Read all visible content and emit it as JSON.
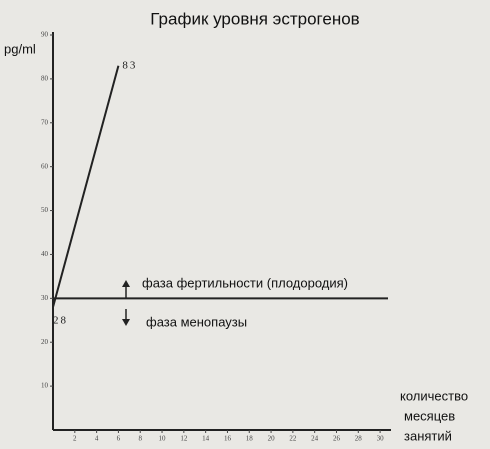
{
  "chart_data": {
    "type": "line",
    "title": "График уровня эстрогенов",
    "y_label": "pg/ml",
    "x_label": [
      "количество",
      "месяцев",
      "занятий"
    ],
    "x": [
      0,
      6
    ],
    "series": [
      {
        "color": "#222222",
        "values": [
          28,
          83
        ]
      }
    ],
    "hline": 30,
    "annotations": [
      "фаза фертильности (плодородия)",
      "фаза менопаузы"
    ],
    "xlim": [
      0,
      31
    ],
    "ylim": [
      0,
      90
    ],
    "xticks": [
      2,
      4,
      6,
      8,
      10,
      12,
      14,
      16,
      18,
      20,
      22,
      24,
      26,
      28,
      30
    ],
    "yticks": [
      10,
      20,
      30,
      40,
      50,
      60,
      70,
      80,
      90
    ]
  }
}
